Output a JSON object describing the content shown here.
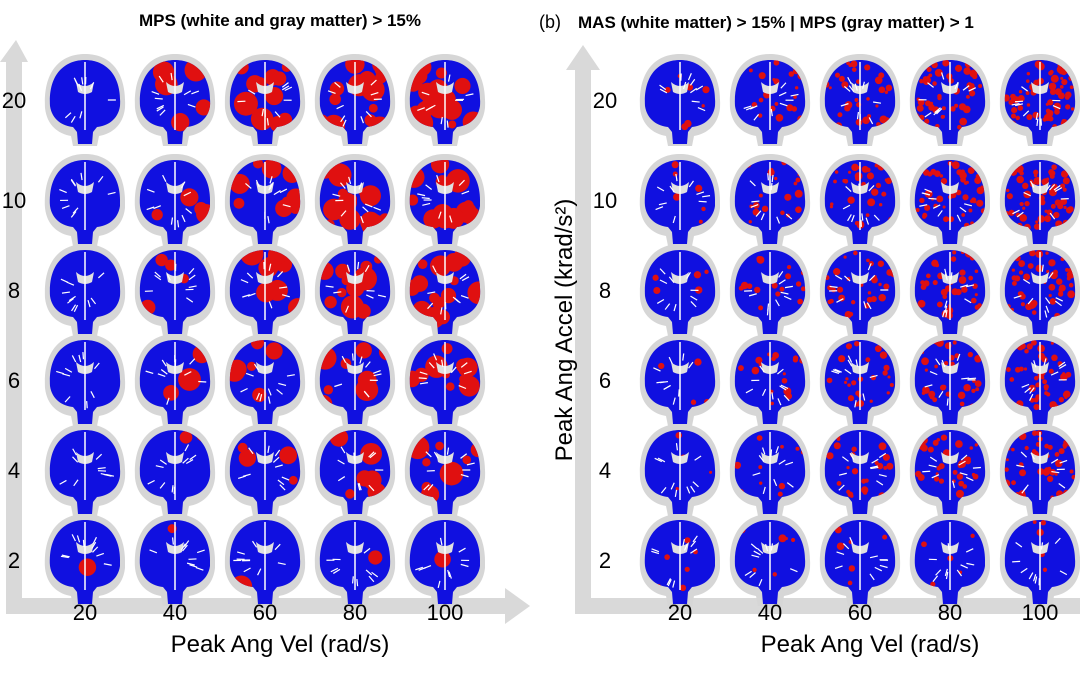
{
  "panels": [
    {
      "title": "MPS (white and gray matter) > 15%",
      "x_label": "Peak Ang Vel (rad/s)",
      "x_ticks": [
        "20",
        "40",
        "60",
        "80",
        "100"
      ],
      "y_ticks": [
        "20",
        "10",
        "8",
        "6",
        "4",
        "2"
      ]
    },
    {
      "label": "(b)",
      "title": "MAS (white matter) > 15% | MPS (gray matter) > 1",
      "x_label": "Peak Ang Vel (rad/s)",
      "y_label": "Peak Ang Accel (krad/s²)",
      "x_ticks": [
        "20",
        "40",
        "60",
        "80",
        "100"
      ],
      "y_ticks": [
        "20",
        "10",
        "8",
        "6",
        "4",
        "2"
      ]
    }
  ]
}
